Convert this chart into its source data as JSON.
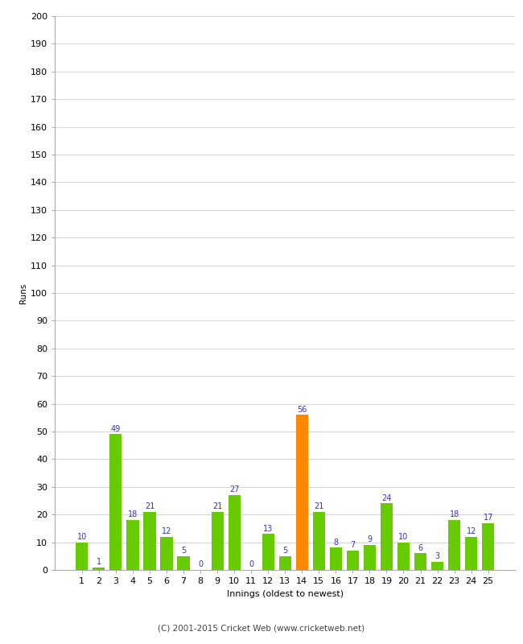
{
  "innings": [
    1,
    2,
    3,
    4,
    5,
    6,
    7,
    8,
    9,
    10,
    11,
    12,
    13,
    14,
    15,
    16,
    17,
    18,
    19,
    20,
    21,
    22,
    23,
    24,
    25
  ],
  "runs": [
    10,
    1,
    49,
    18,
    21,
    12,
    5,
    0,
    21,
    27,
    0,
    13,
    5,
    56,
    21,
    8,
    7,
    9,
    24,
    10,
    6,
    3,
    18,
    12,
    17
  ],
  "highlight_innings": [
    14
  ],
  "bar_color_normal": "#66cc00",
  "bar_color_highlight": "#ff8800",
  "label_color": "#3333bb",
  "background_color": "#ffffff",
  "grid_color": "#cccccc",
  "ylabel": "Runs",
  "xlabel": "Innings (oldest to newest)",
  "ylim": [
    0,
    200
  ],
  "yticks": [
    0,
    10,
    20,
    30,
    40,
    50,
    60,
    70,
    80,
    90,
    100,
    110,
    120,
    130,
    140,
    150,
    160,
    170,
    180,
    190,
    200
  ],
  "footer": "(C) 2001-2015 Cricket Web (www.cricketweb.net)",
  "label_fontsize": 7,
  "axis_tick_fontsize": 8,
  "ylabel_fontsize": 7.5,
  "xlabel_fontsize": 8,
  "footer_fontsize": 7.5
}
